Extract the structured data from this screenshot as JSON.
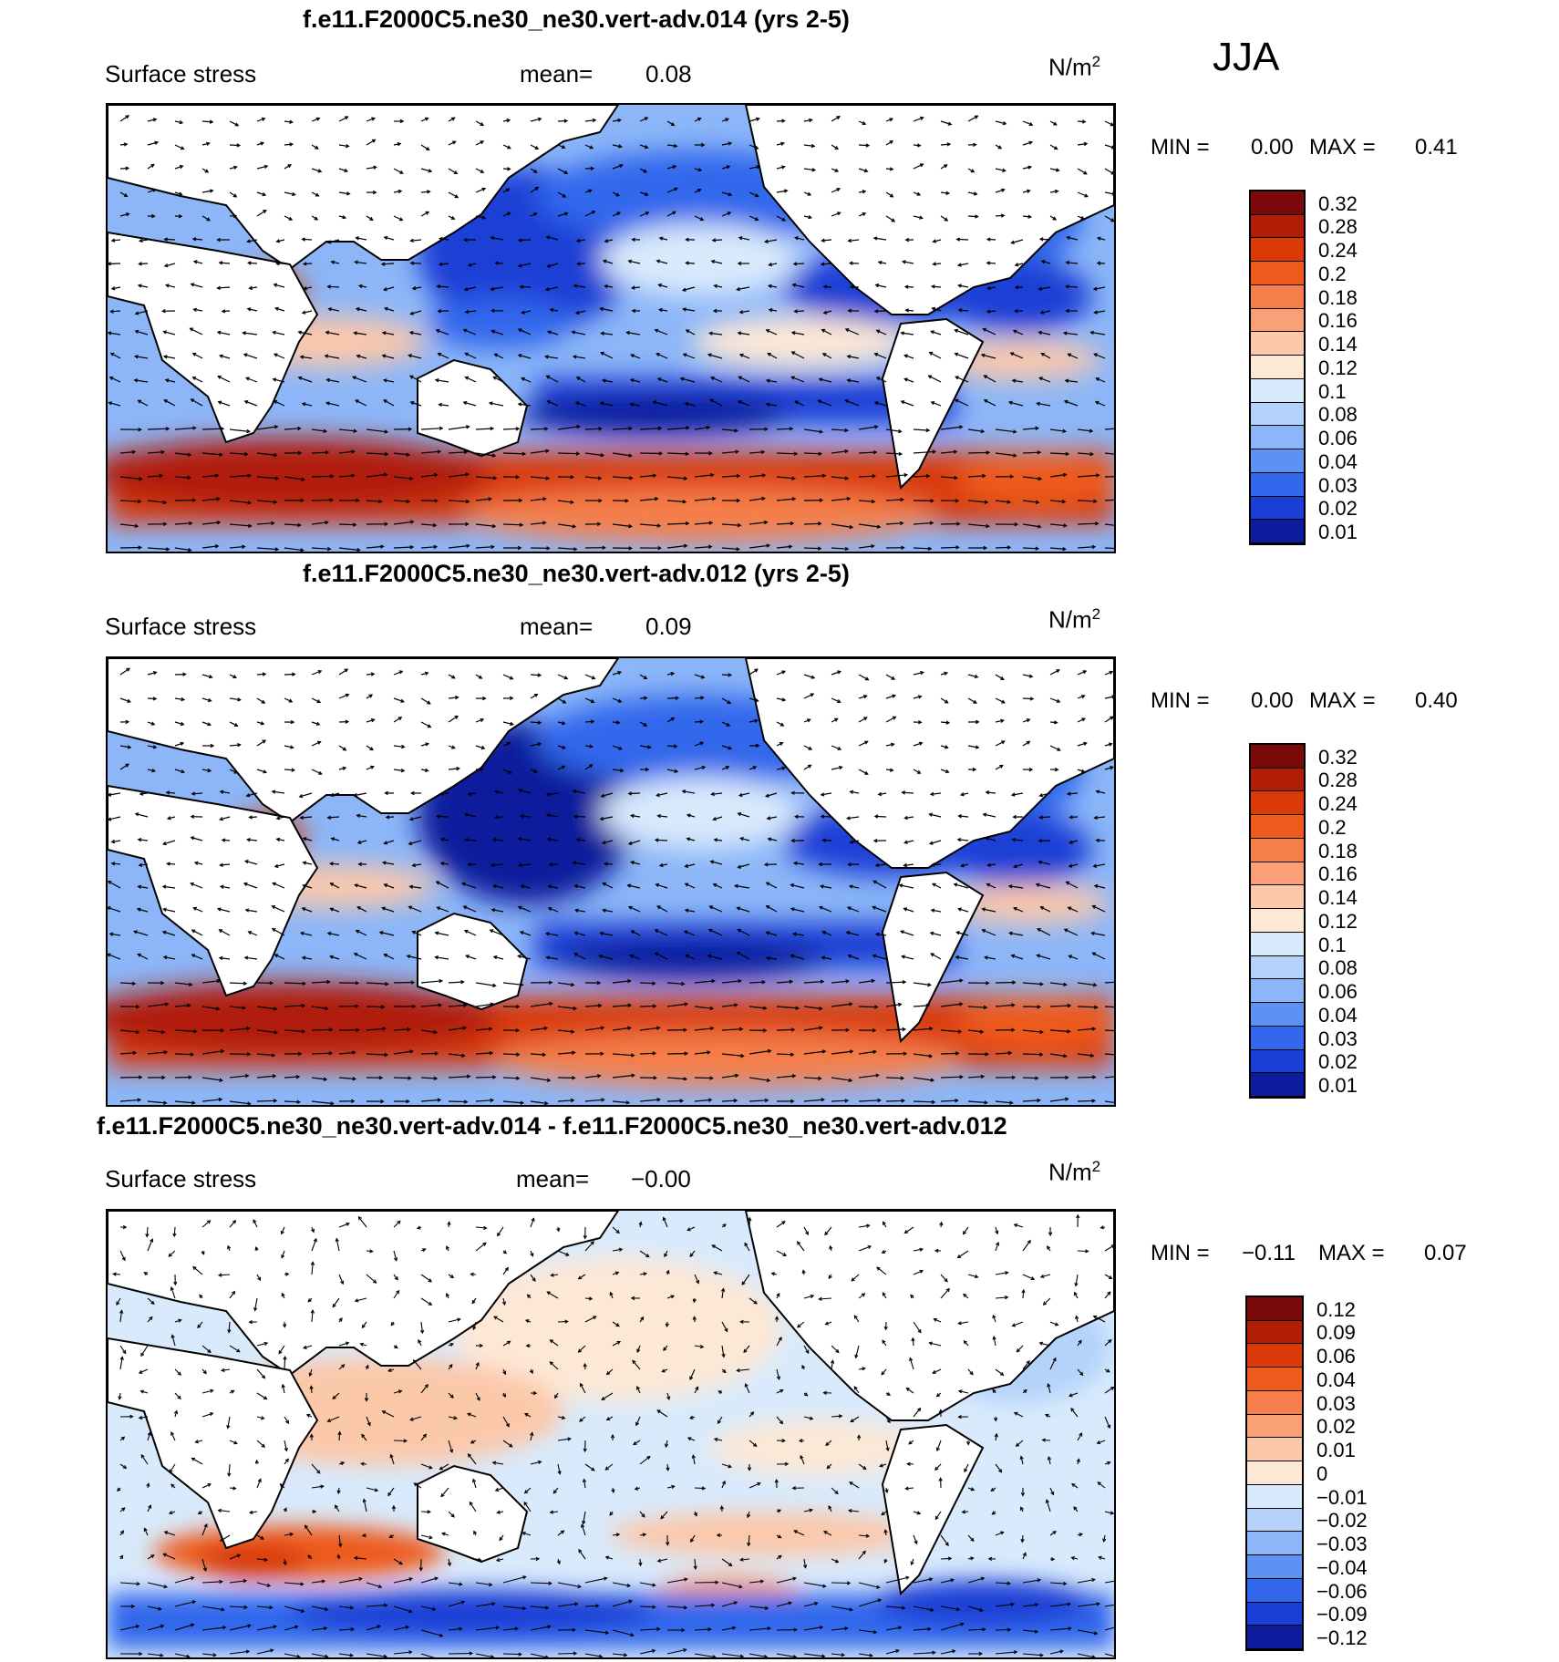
{
  "season": "JJA",
  "panels": [
    {
      "title": "f.e11.F2000C5.ne30_ne30.vert-adv.014 (yrs 2-5)",
      "field": "Surface stress",
      "mean_label": "mean=",
      "mean_value": "0.08",
      "units": "N/m",
      "units_exp": "2",
      "min_label": "MIN =",
      "min_value": "0.00",
      "max_label": "MAX =",
      "max_value": "0.41",
      "levels": [
        "0.32",
        "0.28",
        "0.24",
        "0.2",
        "0.18",
        "0.16",
        "0.14",
        "0.12",
        "0.1",
        "0.08",
        "0.06",
        "0.04",
        "0.03",
        "0.02",
        "0.01"
      ],
      "colors": [
        "#7a0a0a",
        "#b01e08",
        "#d93a08",
        "#ee5a1c",
        "#f57e4a",
        "#f9a077",
        "#fcc8aa",
        "#fde8d6",
        "#d8eafc",
        "#b4d2fa",
        "#8cb6f8",
        "#5e92f2",
        "#3368ec",
        "#1a3fd6",
        "#0c1c9c"
      ]
    },
    {
      "title": "f.e11.F2000C5.ne30_ne30.vert-adv.012 (yrs 2-5)",
      "field": "Surface stress",
      "mean_label": "mean=",
      "mean_value": "0.09",
      "units": "N/m",
      "units_exp": "2",
      "min_label": "MIN =",
      "min_value": "0.00",
      "max_label": "MAX =",
      "max_value": "0.40",
      "levels": [
        "0.32",
        "0.28",
        "0.24",
        "0.2",
        "0.18",
        "0.16",
        "0.14",
        "0.12",
        "0.1",
        "0.08",
        "0.06",
        "0.04",
        "0.03",
        "0.02",
        "0.01"
      ],
      "colors": [
        "#7a0a0a",
        "#b01e08",
        "#d93a08",
        "#ee5a1c",
        "#f57e4a",
        "#f9a077",
        "#fcc8aa",
        "#fde8d6",
        "#d8eafc",
        "#b4d2fa",
        "#8cb6f8",
        "#5e92f2",
        "#3368ec",
        "#1a3fd6",
        "#0c1c9c"
      ]
    },
    {
      "title": "f.e11.F2000C5.ne30_ne30.vert-adv.014 - f.e11.F2000C5.ne30_ne30.vert-adv.012",
      "field": "Surface stress",
      "mean_label": "mean=",
      "mean_value": "−0.00",
      "units": "N/m",
      "units_exp": "2",
      "min_label": "MIN =",
      "min_value": "−0.11",
      "max_label": "MAX =",
      "max_value": "0.07",
      "levels": [
        "0.12",
        "0.09",
        "0.06",
        "0.04",
        "0.03",
        "0.02",
        "0.01",
        "0",
        "−0.01",
        "−0.02",
        "−0.03",
        "−0.04",
        "−0.06",
        "−0.09",
        "−0.12"
      ],
      "colors": [
        "#7a0a0a",
        "#b01e08",
        "#d93a08",
        "#ee5a1c",
        "#f57e4a",
        "#f9a077",
        "#fcc8aa",
        "#fde8d6",
        "#d8eafc",
        "#b4d2fa",
        "#8cb6f8",
        "#5e92f2",
        "#3368ec",
        "#1a3fd6",
        "#0c1c9c"
      ]
    }
  ]
}
